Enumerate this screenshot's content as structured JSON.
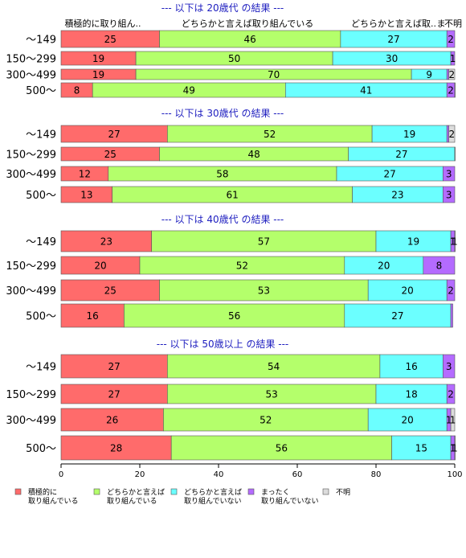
{
  "chart_data": {
    "type": "bar",
    "orientation": "horizontal",
    "stacked": true,
    "xlim": [
      0,
      100
    ],
    "xticks": [
      "0",
      "20",
      "40",
      "60",
      "80",
      "100"
    ],
    "column_headers": [
      "積極的に取り組ん..",
      "どちらかと言えば取り組んでいる",
      "どちらかと言えば取..",
      "ま",
      "不明"
    ],
    "legend": {
      "placement": "bottom",
      "entries": [
        {
          "line1": "積極的に",
          "line2": "取り組んでいる",
          "color": "#ff6b6b"
        },
        {
          "line1": "どちらかと言えば",
          "line2": "取り組んでいる",
          "color": "#b4ff6b"
        },
        {
          "line1": "どちらかと言えば",
          "line2": "取り組んでいない",
          "color": "#6bffff"
        },
        {
          "line1": "まったく",
          "line2": "取り組んでいない",
          "color": "#b46bff"
        },
        {
          "line1": "不明",
          "line2": "",
          "color": "#dcdcdc"
        }
      ]
    },
    "groups": [
      {
        "title": "--- 以下は 20歳代 の結果 ---",
        "rows": [
          {
            "category": "～149",
            "values": [
              25,
              46,
              27,
              2,
              0
            ]
          },
          {
            "category": "150～299",
            "values": [
              19,
              50,
              30,
              1,
              0
            ]
          },
          {
            "category": "300～499",
            "values": [
              19,
              70,
              9,
              0.5,
              2
            ]
          },
          {
            "category": "500～",
            "values": [
              8,
              49,
              41,
              2,
              0.5
            ]
          }
        ]
      },
      {
        "title": "--- 以下は 30歳代 の結果 ---",
        "rows": [
          {
            "category": "～149",
            "values": [
              27,
              52,
              19,
              0.5,
              2
            ]
          },
          {
            "category": "150～299",
            "values": [
              25,
              48,
              27,
              0.5,
              0
            ]
          },
          {
            "category": "300～499",
            "values": [
              12,
              58,
              27,
              3,
              0
            ]
          },
          {
            "category": "500～",
            "values": [
              13,
              61,
              23,
              3,
              0
            ]
          }
        ]
      },
      {
        "title": "--- 以下は 40歳代 の結果 ---",
        "rows": [
          {
            "category": "～149",
            "values": [
              23,
              57,
              19,
              1,
              1
            ]
          },
          {
            "category": "150～299",
            "values": [
              20,
              52,
              20,
              8,
              0
            ]
          },
          {
            "category": "300～499",
            "values": [
              25,
              53,
              20,
              2,
              0
            ]
          },
          {
            "category": "500～",
            "values": [
              16,
              56,
              27,
              0.5,
              0
            ]
          }
        ]
      },
      {
        "title": "--- 以下は 50歳以上 の結果 ---",
        "rows": [
          {
            "category": "～149",
            "values": [
              27,
              54,
              16,
              3,
              0
            ]
          },
          {
            "category": "150～299",
            "values": [
              27,
              53,
              18,
              2,
              0
            ]
          },
          {
            "category": "300～499",
            "values": [
              26,
              52,
              20,
              1,
              1
            ]
          },
          {
            "category": "500～",
            "values": [
              28,
              56,
              15,
              1,
              1
            ]
          }
        ]
      }
    ]
  }
}
